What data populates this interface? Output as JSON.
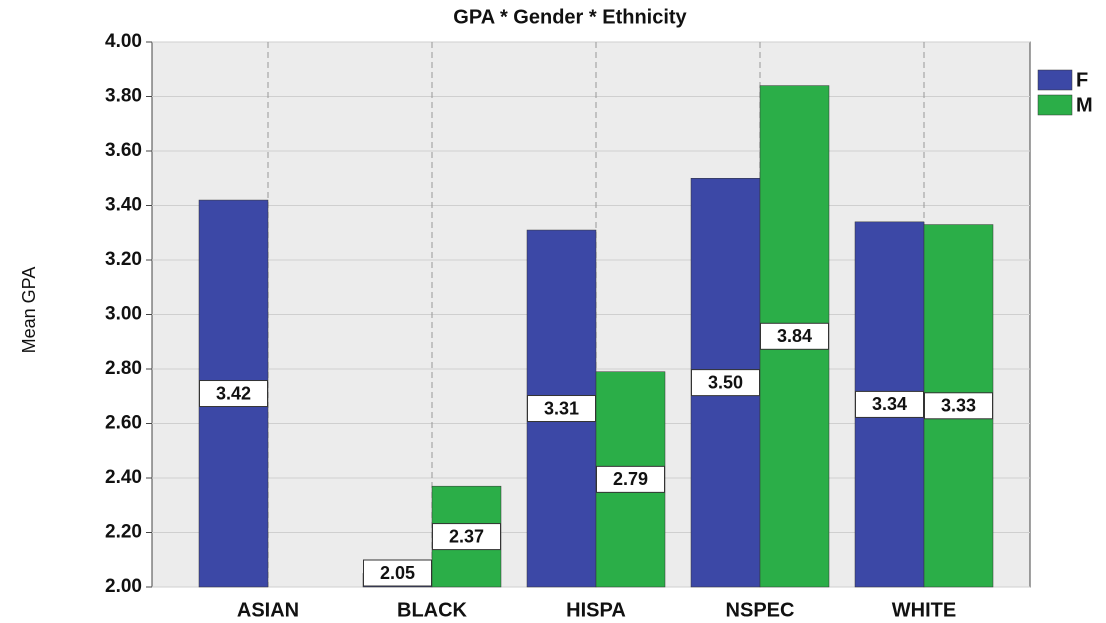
{
  "chart_data": {
    "type": "bar",
    "title": "GPA * Gender * Ethnicity",
    "y_label": "Mean GPA",
    "categories": [
      "ASIAN",
      "BLACK",
      "HISPA",
      "NSPEC",
      "WHITE"
    ],
    "series": [
      {
        "name": "F",
        "color": "#3c48a6",
        "values": [
          3.42,
          2.05,
          3.31,
          3.5,
          3.34
        ],
        "value_labels": [
          "3.42",
          "2.05",
          "3.31",
          "3.50",
          "3.34"
        ]
      },
      {
        "name": "M",
        "color": "#2bae48",
        "values": [
          null,
          2.37,
          2.79,
          3.84,
          3.33
        ],
        "value_labels": [
          null,
          "2.37",
          "2.79",
          "3.84",
          "3.33"
        ]
      }
    ],
    "ylim": [
      2,
      4
    ],
    "yticks": [
      {
        "value": 2,
        "label": "2.00"
      },
      {
        "value": 2.2,
        "label": "2.20"
      },
      {
        "value": 2.4,
        "label": "2.40"
      },
      {
        "value": 2.6,
        "label": "2.60"
      },
      {
        "value": 2.8,
        "label": "2.80"
      },
      {
        "value": 3,
        "label": "3.00"
      },
      {
        "value": 3.2,
        "label": "3.20"
      },
      {
        "value": 3.4,
        "label": "3.40"
      },
      {
        "value": 3.6,
        "label": "3.60"
      },
      {
        "value": 3.8,
        "label": "3.80"
      },
      {
        "value": 4,
        "label": "4.00"
      }
    ],
    "grid": true,
    "legend": "right"
  }
}
